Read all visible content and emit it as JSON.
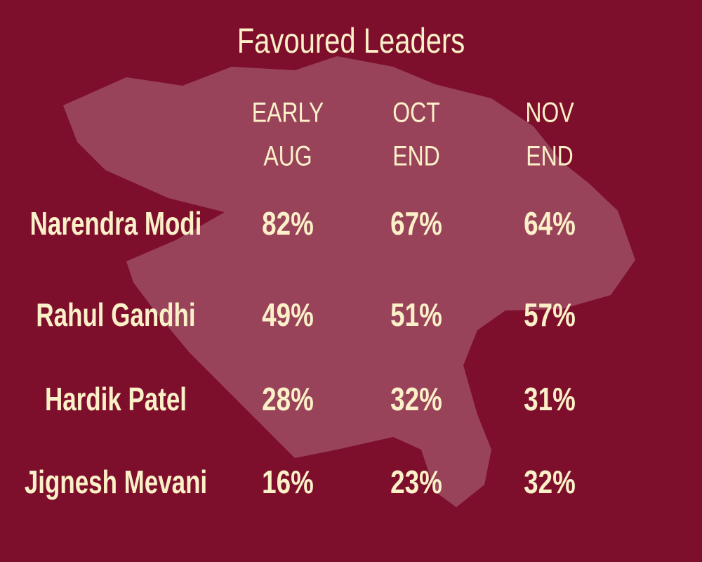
{
  "title": "Favoured Leaders",
  "table": {
    "columns": [
      [
        "EARLY",
        "AUG"
      ],
      [
        "OCT",
        "END"
      ],
      [
        "NOV",
        "END"
      ]
    ],
    "rows": [
      [
        "Narendra Modi",
        "82%",
        "67%",
        "64%"
      ],
      [
        "Rahul Gandhi",
        "49%",
        "51%",
        "57%"
      ],
      [
        "Hardik Patel",
        "28%",
        "32%",
        "31%"
      ],
      [
        "Jignesh Mevani",
        "16%",
        "23%",
        "32%"
      ]
    ]
  }
}
